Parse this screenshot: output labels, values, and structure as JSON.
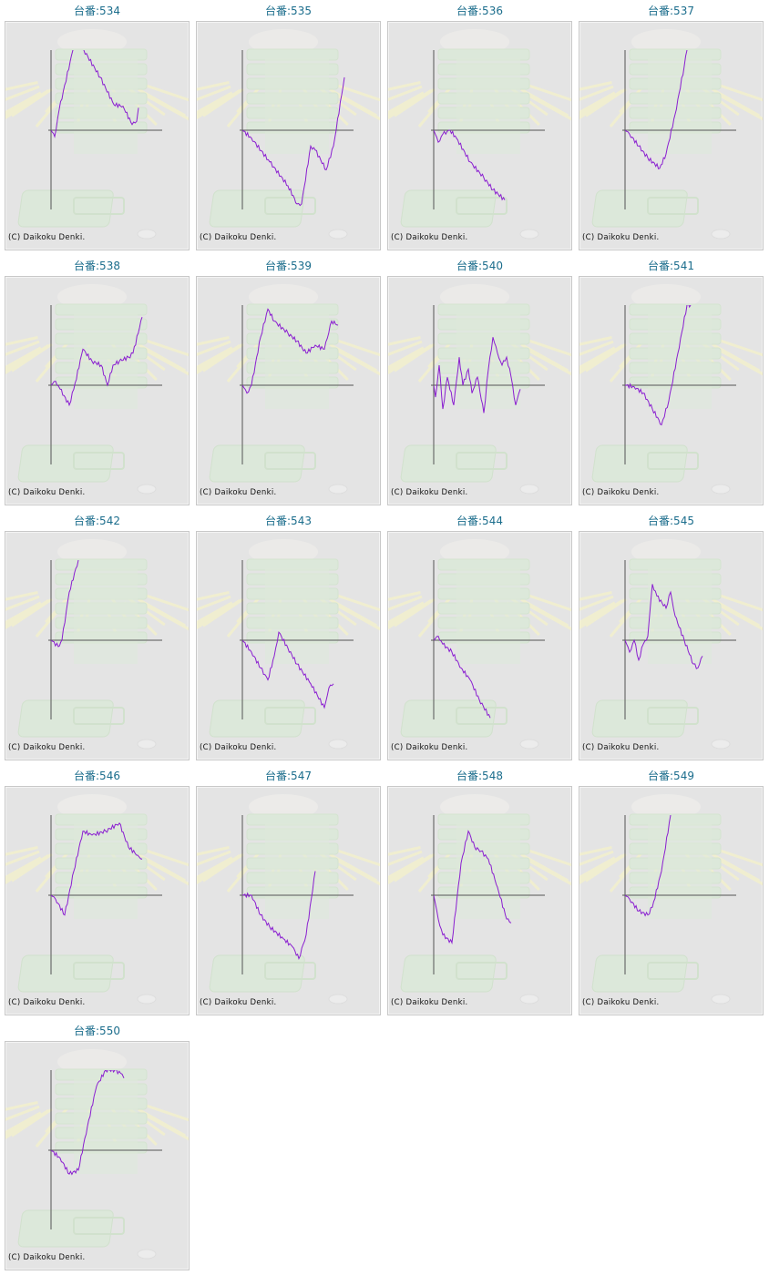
{
  "copyright": "(C) Daikoku Denki.",
  "colors": {
    "title": "#1b6d8c",
    "line": "#8a1ed0",
    "axis": "#555555",
    "background": "#e4e4e4"
  },
  "chart_data": [
    {
      "type": "line",
      "title": "台番:534",
      "xlim": [
        0,
        122
      ],
      "ylim": [
        -100,
        100
      ],
      "grid": false,
      "x": [
        0,
        4,
        9,
        24,
        28,
        33,
        36,
        54,
        69,
        79,
        89,
        94,
        96
      ],
      "y": [
        0,
        -8,
        26,
        100,
        112,
        112,
        100,
        66,
        32,
        30,
        7,
        11,
        28
      ]
    },
    {
      "type": "line",
      "title": "台番:535",
      "xlim": [
        0,
        122
      ],
      "ylim": [
        -100,
        100
      ],
      "grid": false,
      "x": [
        0,
        10,
        30,
        50,
        60,
        65,
        75,
        80,
        92,
        100,
        112
      ],
      "y": [
        0,
        -10,
        -40,
        -70,
        -93,
        -93,
        -20,
        -25,
        -50,
        -20,
        66
      ]
    },
    {
      "type": "line",
      "title": "台番:536",
      "xlim": [
        0,
        122
      ],
      "ylim": [
        -100,
        100
      ],
      "grid": false,
      "x": [
        0,
        5,
        10,
        18,
        25,
        40,
        55,
        65,
        78
      ],
      "y": [
        0,
        -15,
        -5,
        0,
        -10,
        -40,
        -60,
        -75,
        -88
      ]
    },
    {
      "type": "line",
      "title": "台番:537",
      "xlim": [
        0,
        122
      ],
      "ylim": [
        -100,
        100
      ],
      "grid": false,
      "x": [
        0,
        5,
        15,
        25,
        38,
        45,
        55,
        65,
        68
      ],
      "y": [
        0,
        -5,
        -20,
        -35,
        -48,
        -30,
        20,
        80,
        100
      ]
    },
    {
      "type": "line",
      "title": "台番:538",
      "xlim": [
        0,
        122
      ],
      "ylim": [
        -100,
        100
      ],
      "grid": false,
      "x": [
        0,
        5,
        10,
        20,
        25,
        35,
        45,
        55,
        62,
        68,
        75,
        85,
        90,
        100
      ],
      "y": [
        0,
        5,
        -5,
        -25,
        -5,
        45,
        30,
        25,
        0,
        25,
        30,
        35,
        40,
        85
      ]
    },
    {
      "type": "line",
      "title": "台番:539",
      "xlim": [
        0,
        122
      ],
      "ylim": [
        -100,
        100
      ],
      "grid": false,
      "x": [
        0,
        5,
        10,
        20,
        28,
        35,
        50,
        60,
        70,
        80,
        90,
        98,
        105
      ],
      "y": [
        0,
        -10,
        0,
        60,
        95,
        80,
        65,
        55,
        40,
        50,
        45,
        80,
        75
      ]
    },
    {
      "type": "line",
      "title": "台番:540",
      "xlim": [
        0,
        122
      ],
      "ylim": [
        -100,
        100
      ],
      "grid": false,
      "x": [
        0,
        2,
        6,
        10,
        15,
        22,
        28,
        32,
        38,
        42,
        48,
        55,
        60,
        65,
        70,
        75,
        80,
        85,
        90,
        95
      ],
      "y": [
        0,
        -15,
        25,
        -30,
        10,
        -25,
        35,
        0,
        20,
        -10,
        10,
        -35,
        20,
        60,
        40,
        25,
        35,
        10,
        -25,
        -5
      ]
    },
    {
      "type": "line",
      "title": "台番:541",
      "xlim": [
        0,
        122
      ],
      "ylim": [
        -100,
        100
      ],
      "grid": false,
      "x": [
        0,
        10,
        20,
        30,
        40,
        48,
        58,
        68,
        72
      ],
      "y": [
        0,
        -2,
        -10,
        -30,
        -50,
        -20,
        40,
        100,
        100
      ]
    },
    {
      "type": "line",
      "title": "台番:542",
      "xlim": [
        0,
        122
      ],
      "ylim": [
        -100,
        100
      ],
      "grid": false,
      "x": [
        0,
        8,
        12,
        20,
        30
      ],
      "y": [
        0,
        -8,
        0,
        60,
        100
      ]
    },
    {
      "type": "line",
      "title": "台番:543",
      "xlim": [
        0,
        122
      ],
      "ylim": [
        -100,
        100
      ],
      "grid": false,
      "x": [
        0,
        10,
        20,
        28,
        35,
        40,
        50,
        60,
        75,
        90,
        95,
        100
      ],
      "y": [
        0,
        -15,
        -35,
        -50,
        -20,
        10,
        -10,
        -30,
        -55,
        -85,
        -60,
        -55
      ]
    },
    {
      "type": "line",
      "title": "台番:544",
      "xlim": [
        0,
        122
      ],
      "ylim": [
        -100,
        100
      ],
      "grid": false,
      "x": [
        0,
        5,
        10,
        20,
        30,
        40,
        50,
        62
      ],
      "y": [
        0,
        5,
        -5,
        -15,
        -35,
        -50,
        -75,
        -98
      ]
    },
    {
      "type": "line",
      "title": "台番:545",
      "xlim": [
        0,
        122
      ],
      "ylim": [
        -100,
        100
      ],
      "grid": false,
      "x": [
        0,
        5,
        10,
        15,
        20,
        25,
        30,
        35,
        45,
        50,
        55,
        65,
        75,
        80,
        85
      ],
      "y": [
        0,
        -15,
        0,
        -25,
        -5,
        5,
        70,
        55,
        40,
        60,
        30,
        0,
        -30,
        -35,
        -20
      ]
    },
    {
      "type": "line",
      "title": "台番:546",
      "xlim": [
        0,
        122
      ],
      "ylim": [
        -100,
        100
      ],
      "grid": false,
      "x": [
        0,
        5,
        15,
        25,
        35,
        45,
        60,
        75,
        85,
        95,
        100
      ],
      "y": [
        0,
        -5,
        -25,
        30,
        80,
        75,
        80,
        90,
        60,
        50,
        45
      ]
    },
    {
      "type": "line",
      "title": "台番:547",
      "xlim": [
        0,
        122
      ],
      "ylim": [
        -100,
        100
      ],
      "grid": false,
      "x": [
        0,
        10,
        20,
        30,
        45,
        55,
        62,
        70,
        80
      ],
      "y": [
        0,
        0,
        -25,
        -40,
        -55,
        -65,
        -80,
        -50,
        30
      ]
    },
    {
      "type": "line",
      "title": "台番:548",
      "xlim": [
        0,
        122
      ],
      "ylim": [
        -100,
        100
      ],
      "grid": false,
      "x": [
        0,
        5,
        10,
        20,
        30,
        38,
        45,
        52,
        60,
        70,
        80,
        85
      ],
      "y": [
        0,
        -30,
        -50,
        -60,
        40,
        80,
        60,
        55,
        45,
        10,
        -30,
        -35
      ]
    },
    {
      "type": "line",
      "title": "台番:549",
      "xlim": [
        0,
        122
      ],
      "ylim": [
        -100,
        100
      ],
      "grid": false,
      "x": [
        0,
        5,
        15,
        25,
        30,
        40,
        50
      ],
      "y": [
        0,
        -5,
        -20,
        -25,
        -15,
        30,
        100
      ]
    },
    {
      "type": "line",
      "title": "台番:550",
      "xlim": [
        0,
        122
      ],
      "ylim": [
        -100,
        100
      ],
      "grid": false,
      "x": [
        0,
        10,
        20,
        30,
        40,
        50,
        60,
        70,
        78,
        80
      ],
      "y": [
        0,
        -10,
        -30,
        -25,
        30,
        80,
        100,
        100,
        95,
        90
      ]
    }
  ]
}
